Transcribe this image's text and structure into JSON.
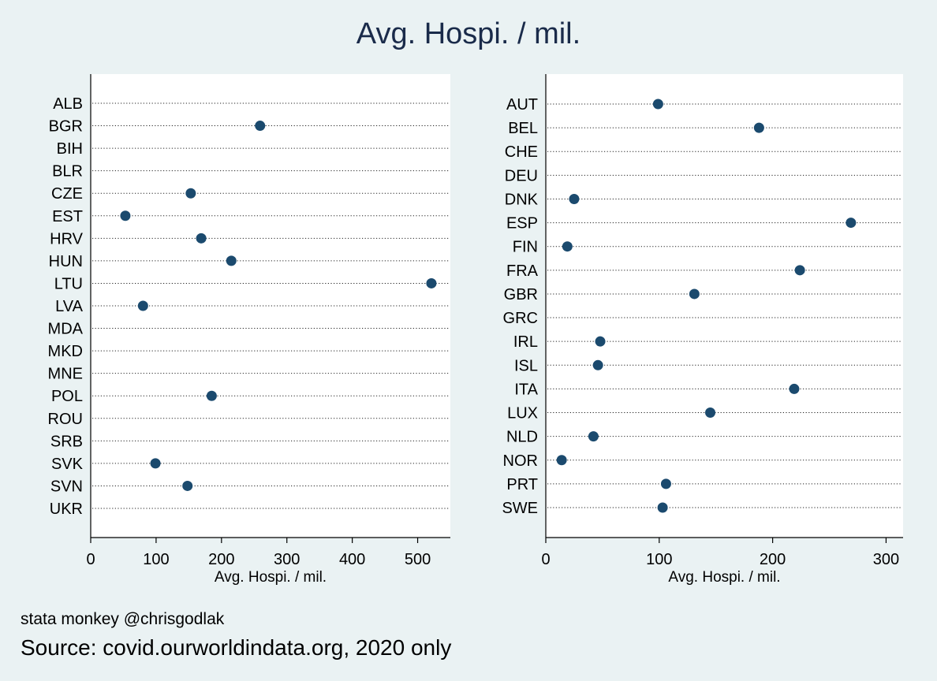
{
  "title": "Avg. Hospi. / mil.",
  "caption": "stata monkey @chrisgodlak",
  "note": "Source: covid.ourworldindata.org, 2020 only",
  "colors": {
    "background": "#eaf2f3",
    "plot_bg": "#ffffff",
    "marker": "#1b4a6e",
    "title": "#1a2b4a"
  },
  "chart_data": [
    {
      "type": "scatter",
      "orientation": "dot-plot",
      "xlabel": "Avg. Hospi. / mil.",
      "xlim": [
        0,
        550
      ],
      "xticks": [
        0,
        100,
        200,
        300,
        400,
        500
      ],
      "grid": "dotted horizontal lines per category",
      "categories": [
        "ALB",
        "BGR",
        "BIH",
        "BLR",
        "CZE",
        "EST",
        "HRV",
        "HUN",
        "LTU",
        "LVA",
        "MDA",
        "MKD",
        "MNE",
        "POL",
        "ROU",
        "SRB",
        "SVK",
        "SVN",
        "UKR"
      ],
      "values": [
        null,
        259,
        null,
        null,
        153,
        53,
        169,
        215,
        521,
        80,
        null,
        null,
        null,
        185,
        null,
        null,
        99,
        148,
        null
      ]
    },
    {
      "type": "scatter",
      "orientation": "dot-plot",
      "xlabel": "Avg. Hospi. / mil.",
      "xlim": [
        0,
        315
      ],
      "xticks": [
        0,
        100,
        200,
        300
      ],
      "grid": "dotted horizontal lines per category",
      "categories": [
        "AUT",
        "BEL",
        "CHE",
        "DEU",
        "DNK",
        "ESP",
        "FIN",
        "FRA",
        "GBR",
        "GRC",
        "IRL",
        "ISL",
        "ITA",
        "LUX",
        "NLD",
        "NOR",
        "PRT",
        "SWE"
      ],
      "values": [
        99,
        188,
        null,
        null,
        25,
        269,
        19,
        224,
        131,
        null,
        48,
        46,
        219,
        145,
        42,
        14,
        106,
        103
      ]
    }
  ]
}
